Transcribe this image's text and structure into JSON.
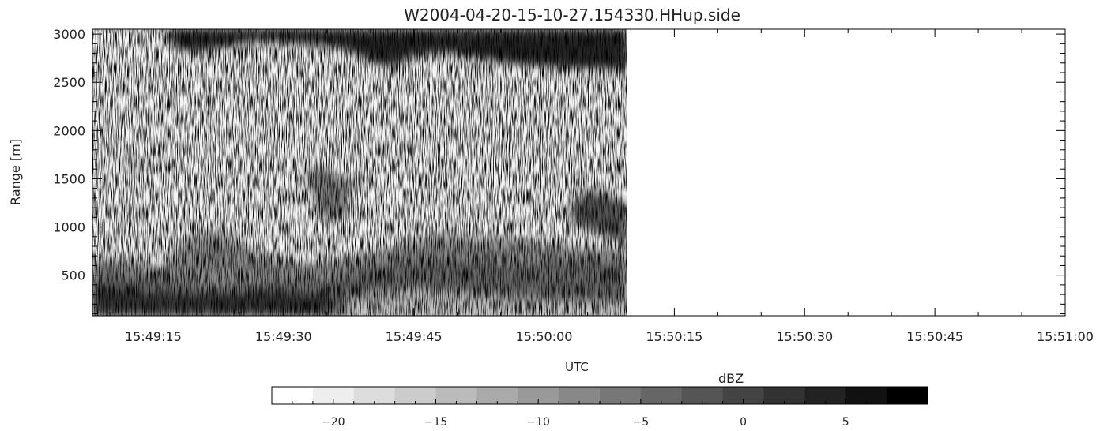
{
  "chart_data": {
    "type": "heatmap",
    "title": "W2004-04-20-15-10-27.154330.HHup.side",
    "xlabel": "UTC",
    "ylabel": "Range [m]",
    "x_ticks": [
      "15:49:15",
      "15:49:30",
      "15:49:45",
      "15:50:00",
      "15:50:15",
      "15:50:30",
      "15:50:45",
      "15:51:00"
    ],
    "y_ticks": [
      500,
      1000,
      1500,
      2000,
      2500,
      3000
    ],
    "ylim": [
      80,
      3050
    ],
    "xlim": [
      "15:49:08",
      "15:51:00"
    ],
    "data_extent_x": [
      "15:49:08",
      "15:50:10"
    ],
    "colorscale": "grayscale, white = low, black = high",
    "colorbar": {
      "label": "dBZ",
      "range": [
        -23,
        9
      ],
      "ticks": [
        -20,
        -15,
        -10,
        -5,
        0,
        5
      ]
    }
  }
}
